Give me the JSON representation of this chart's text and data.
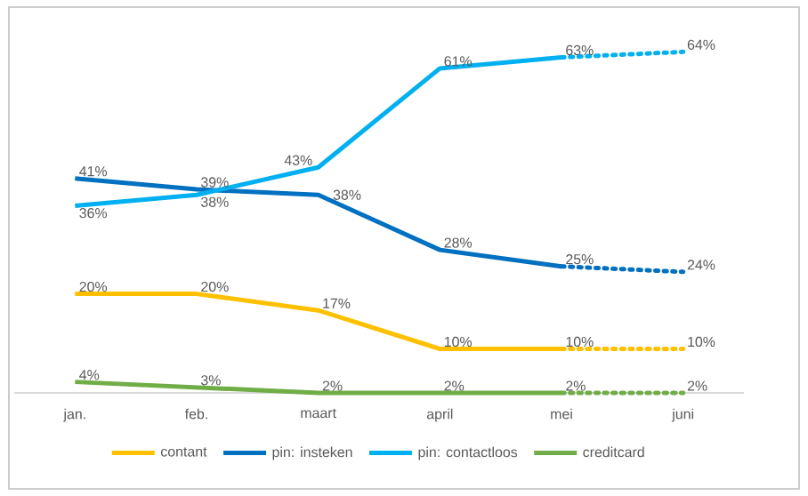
{
  "chart_data": {
    "type": "line",
    "categories": [
      "jan.",
      "feb.",
      "maart",
      "april",
      "mei",
      "juni"
    ],
    "tick_labels": "x",
    "legend": "bottom",
    "series": [
      {
        "name": "contant",
        "color": "#ffc000",
        "line_style": "solid",
        "values": [
          20,
          20,
          17,
          10,
          10,
          null
        ],
        "value_labels": [
          "20%",
          "20%",
          "17%",
          "10%",
          "10%",
          null
        ]
      },
      {
        "name": "pin: insteken",
        "color": "#0070c0",
        "line_style": "solid",
        "values": [
          41,
          39,
          38,
          28,
          25,
          null
        ],
        "value_labels": [
          "41%",
          "39%",
          "38%",
          "28%",
          "25%",
          null
        ]
      },
      {
        "name": "pin: contactloos",
        "color": "#00b0f0",
        "line_style": "solid",
        "values": [
          36,
          38,
          43,
          61,
          63,
          null
        ],
        "value_labels": [
          "36%",
          "38%",
          "43%",
          "61%",
          "63%",
          null
        ]
      },
      {
        "name": "creditcard",
        "color": "#70ad47",
        "line_style": "solid",
        "values": [
          4,
          3,
          2,
          2,
          2,
          null
        ],
        "value_labels": [
          "4%",
          "3%",
          "2%",
          "2%",
          "2%",
          null
        ]
      },
      {
        "color": "#ffc000",
        "line_style": "dotted",
        "values": [
          null,
          null,
          null,
          null,
          10,
          10
        ],
        "value_labels": [
          null,
          null,
          null,
          null,
          null,
          "10%"
        ]
      },
      {
        "color": "#0070c0",
        "line_style": "dotted",
        "values": [
          null,
          null,
          null,
          null,
          25,
          24
        ],
        "value_labels": [
          null,
          null,
          null,
          null,
          null,
          "24%"
        ]
      },
      {
        "color": "#00b0f0",
        "line_style": "dotted",
        "values": [
          null,
          null,
          null,
          null,
          63,
          64
        ],
        "value_labels": [
          null,
          null,
          null,
          null,
          null,
          "64%"
        ]
      },
      {
        "color": "#70ad47",
        "line_style": "dotted",
        "values": [
          null,
          null,
          null,
          null,
          2,
          2
        ],
        "value_labels": [
          null,
          null,
          null,
          null,
          null,
          "2%"
        ]
      }
    ]
  }
}
